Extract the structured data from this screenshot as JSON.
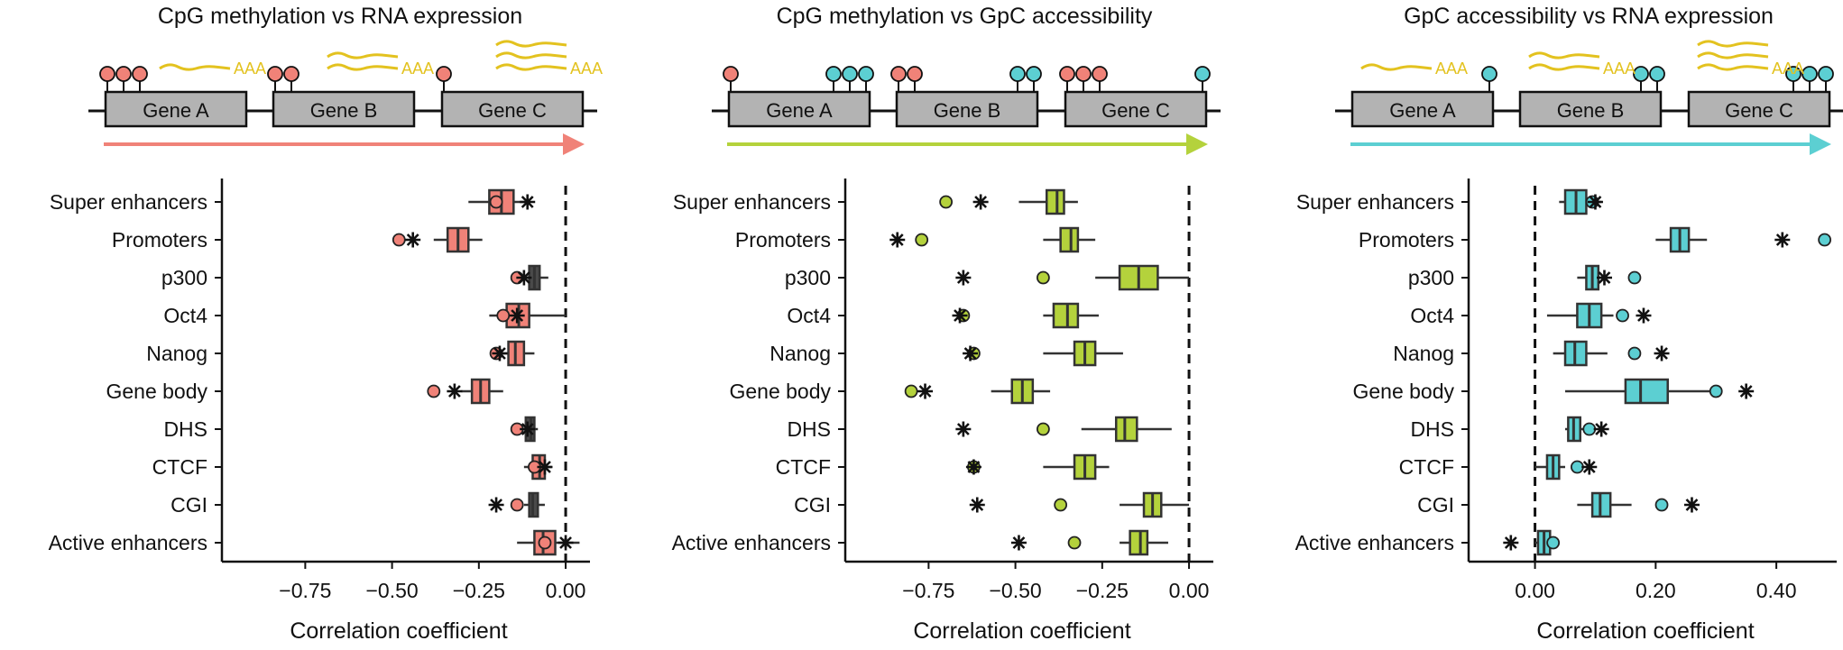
{
  "figure": {
    "panels": [
      {
        "title": "CpG methylation vs RNA expression",
        "accent_color": "#f08278",
        "diagram": {
          "genes": [
            "Gene A",
            "Gene B",
            "Gene C"
          ],
          "pins": [
            {
              "gene": 0,
              "count": 3,
              "color": "#f08278"
            },
            {
              "gene": 1,
              "count": 2,
              "color": "#f08278"
            },
            {
              "gene": 2,
              "count": 1,
              "color": "#f08278"
            }
          ],
          "transcripts": [
            {
              "gene": 0,
              "lines": 1,
              "label": "AAA"
            },
            {
              "gene": 1,
              "lines": 2,
              "label": "AAA"
            },
            {
              "gene": 2,
              "lines": 3,
              "label": "AAA"
            }
          ]
        },
        "chart_data": {
          "type": "box",
          "xlabel": "Correlation coefficient",
          "xlim": [
            -0.99,
            0.07
          ],
          "xticks": [
            -0.75,
            -0.5,
            -0.25,
            0.0
          ],
          "xtick_labels": [
            "−0.75",
            "−0.50",
            "−0.25",
            "0.00"
          ],
          "zero_line": 0.0,
          "categories": [
            "Super enhancers",
            "Promoters",
            "p300",
            "Oct4",
            "Nanog",
            "Gene body",
            "DHS",
            "CTCF",
            "CGI",
            "Active enhancers"
          ],
          "boxes": [
            {
              "category": "Super enhancers",
              "whisker_low": -0.28,
              "q1": -0.22,
              "median": -0.185,
              "q3": -0.15,
              "whisker_high": -0.12,
              "box_color": "#f08278",
              "circle": -0.2,
              "star": -0.11
            },
            {
              "category": "Promoters",
              "whisker_low": -0.38,
              "q1": -0.34,
              "median": -0.31,
              "q3": -0.28,
              "whisker_high": -0.24,
              "box_color": "#f08278",
              "circle": -0.48,
              "star": -0.44
            },
            {
              "category": "p300",
              "whisker_low": -0.13,
              "q1": -0.105,
              "median": -0.09,
              "q3": -0.075,
              "whisker_high": -0.05,
              "box_color": "#f08278",
              "circle": -0.14,
              "star": -0.12
            },
            {
              "category": "Oct4",
              "whisker_low": -0.22,
              "q1": -0.17,
              "median": -0.135,
              "q3": -0.105,
              "whisker_high": 0.0,
              "box_color": "#f08278",
              "circle": -0.18,
              "star": -0.14
            },
            {
              "category": "Nanog",
              "whisker_low": -0.19,
              "q1": -0.165,
              "median": -0.145,
              "q3": -0.12,
              "whisker_high": -0.09,
              "box_color": "#f08278",
              "circle": -0.2,
              "star": -0.19
            },
            {
              "category": "Gene body",
              "whisker_low": -0.3,
              "q1": -0.27,
              "median": -0.245,
              "q3": -0.22,
              "whisker_high": -0.18,
              "box_color": "#f08278",
              "circle": -0.38,
              "star": -0.32
            },
            {
              "category": "DHS",
              "whisker_low": -0.13,
              "q1": -0.115,
              "median": -0.1,
              "q3": -0.09,
              "whisker_high": -0.08,
              "box_color": "#f08278",
              "circle": -0.14,
              "star": -0.11
            },
            {
              "category": "CTCF",
              "whisker_low": -0.12,
              "q1": -0.095,
              "median": -0.075,
              "q3": -0.06,
              "whisker_high": -0.04,
              "box_color": "#f08278",
              "circle": -0.09,
              "star": -0.06
            },
            {
              "category": "CGI",
              "whisker_low": -0.12,
              "q1": -0.105,
              "median": -0.095,
              "q3": -0.08,
              "whisker_high": -0.06,
              "box_color": "#f08278",
              "circle": -0.14,
              "star": -0.2
            },
            {
              "category": "Active enhancers",
              "whisker_low": -0.14,
              "q1": -0.09,
              "median": -0.065,
              "q3": -0.03,
              "whisker_high": 0.04,
              "box_color": "#f08278",
              "circle": -0.06,
              "star": 0.0
            }
          ]
        }
      },
      {
        "title": "CpG methylation vs GpC accessibility",
        "accent_color": "#b4d23c",
        "diagram": {
          "genes": [
            "Gene A",
            "Gene B",
            "Gene C"
          ],
          "pins": [
            {
              "gene": 0,
              "count": 1,
              "color": "#f08278",
              "side": "left"
            },
            {
              "gene": 0,
              "count": 3,
              "color": "#5ccfd2",
              "side": "right"
            },
            {
              "gene": 1,
              "count": 2,
              "color": "#f08278",
              "side": "left"
            },
            {
              "gene": 1,
              "count": 2,
              "color": "#5ccfd2",
              "side": "right"
            },
            {
              "gene": 2,
              "count": 3,
              "color": "#f08278",
              "side": "left"
            },
            {
              "gene": 2,
              "count": 1,
              "color": "#5ccfd2",
              "side": "right"
            }
          ],
          "transcripts": []
        },
        "chart_data": {
          "type": "box",
          "xlabel": "Correlation coefficient",
          "xlim": [
            -0.99,
            0.07
          ],
          "xticks": [
            -0.75,
            -0.5,
            -0.25,
            0.0
          ],
          "xtick_labels": [
            "−0.75",
            "−0.50",
            "−0.25",
            "0.00"
          ],
          "zero_line": 0.0,
          "categories": [
            "Super enhancers",
            "Promoters",
            "p300",
            "Oct4",
            "Nanog",
            "Gene body",
            "DHS",
            "CTCF",
            "CGI",
            "Active enhancers"
          ],
          "boxes": [
            {
              "category": "Super enhancers",
              "whisker_low": -0.49,
              "q1": -0.41,
              "median": -0.38,
              "q3": -0.36,
              "whisker_high": -0.32,
              "box_color": "#b4d23c",
              "circle": -0.7,
              "star": -0.6
            },
            {
              "category": "Promoters",
              "whisker_low": -0.42,
              "q1": -0.37,
              "median": -0.34,
              "q3": -0.32,
              "whisker_high": -0.27,
              "box_color": "#b4d23c",
              "circle": -0.77,
              "star": -0.84
            },
            {
              "category": "p300",
              "whisker_low": -0.27,
              "q1": -0.2,
              "median": -0.145,
              "q3": -0.09,
              "whisker_high": 0.0,
              "box_color": "#b4d23c",
              "circle": -0.42,
              "star": -0.65
            },
            {
              "category": "Oct4",
              "whisker_low": -0.42,
              "q1": -0.39,
              "median": -0.35,
              "q3": -0.32,
              "whisker_high": -0.26,
              "box_color": "#b4d23c",
              "circle": -0.65,
              "star": -0.66
            },
            {
              "category": "Nanog",
              "whisker_low": -0.42,
              "q1": -0.33,
              "median": -0.3,
              "q3": -0.27,
              "whisker_high": -0.19,
              "box_color": "#b4d23c",
              "circle": -0.62,
              "star": -0.63
            },
            {
              "category": "Gene body",
              "whisker_low": -0.57,
              "q1": -0.51,
              "median": -0.48,
              "q3": -0.45,
              "whisker_high": -0.4,
              "box_color": "#b4d23c",
              "circle": -0.8,
              "star": -0.76
            },
            {
              "category": "DHS",
              "whisker_low": -0.31,
              "q1": -0.21,
              "median": -0.185,
              "q3": -0.15,
              "whisker_high": -0.05,
              "box_color": "#b4d23c",
              "circle": -0.42,
              "star": -0.65
            },
            {
              "category": "CTCF",
              "whisker_low": -0.42,
              "q1": -0.33,
              "median": -0.3,
              "q3": -0.27,
              "whisker_high": -0.23,
              "box_color": "#b4d23c",
              "circle": -0.62,
              "star": -0.62
            },
            {
              "category": "CGI",
              "whisker_low": -0.2,
              "q1": -0.13,
              "median": -0.105,
              "q3": -0.08,
              "whisker_high": 0.0,
              "box_color": "#b4d23c",
              "circle": -0.37,
              "star": -0.61
            },
            {
              "category": "Active enhancers",
              "whisker_low": -0.2,
              "q1": -0.17,
              "median": -0.14,
              "q3": -0.12,
              "whisker_high": -0.06,
              "box_color": "#b4d23c",
              "circle": -0.33,
              "star": -0.49
            }
          ]
        }
      },
      {
        "title": "GpC accessibility vs RNA expression",
        "accent_color": "#5ccfd2",
        "diagram": {
          "genes": [
            "Gene A",
            "Gene B",
            "Gene C"
          ],
          "pins": [
            {
              "gene": 0,
              "count": 1,
              "color": "#5ccfd2"
            },
            {
              "gene": 1,
              "count": 2,
              "color": "#5ccfd2"
            },
            {
              "gene": 2,
              "count": 3,
              "color": "#5ccfd2"
            }
          ],
          "transcripts": [
            {
              "gene": 0,
              "lines": 1,
              "label": "AAA"
            },
            {
              "gene": 1,
              "lines": 2,
              "label": "AAA"
            },
            {
              "gene": 2,
              "lines": 3,
              "label": "AAA"
            }
          ]
        },
        "chart_data": {
          "type": "box",
          "xlabel": "Correlation coefficient",
          "xlim": [
            -0.11,
            0.5
          ],
          "xticks": [
            0.0,
            0.2,
            0.4
          ],
          "xtick_labels": [
            "0.00",
            "0.20",
            "0.40"
          ],
          "zero_line": 0.0,
          "categories": [
            "Super enhancers",
            "Promoters",
            "p300",
            "Oct4",
            "Nanog",
            "Gene body",
            "DHS",
            "CTCF",
            "CGI",
            "Active enhancers"
          ],
          "boxes": [
            {
              "category": "Super enhancers",
              "whisker_low": 0.04,
              "q1": 0.05,
              "median": 0.068,
              "q3": 0.085,
              "whisker_high": 0.11,
              "box_color": "#5ccfd2",
              "circle": 0.095,
              "star": 0.1
            },
            {
              "category": "Promoters",
              "whisker_low": 0.2,
              "q1": 0.225,
              "median": 0.24,
              "q3": 0.255,
              "whisker_high": 0.285,
              "box_color": "#5ccfd2",
              "circle": 0.48,
              "star": 0.41
            },
            {
              "category": "p300",
              "whisker_low": 0.07,
              "q1": 0.085,
              "median": 0.095,
              "q3": 0.105,
              "whisker_high": 0.12,
              "box_color": "#5ccfd2",
              "circle": 0.165,
              "star": 0.115
            },
            {
              "category": "Oct4",
              "whisker_low": 0.02,
              "q1": 0.07,
              "median": 0.09,
              "q3": 0.11,
              "whisker_high": 0.13,
              "box_color": "#5ccfd2",
              "circle": 0.145,
              "star": 0.18
            },
            {
              "category": "Nanog",
              "whisker_low": 0.03,
              "q1": 0.05,
              "median": 0.066,
              "q3": 0.085,
              "whisker_high": 0.12,
              "box_color": "#5ccfd2",
              "circle": 0.165,
              "star": 0.21
            },
            {
              "category": "Gene body",
              "whisker_low": 0.05,
              "q1": 0.15,
              "median": 0.175,
              "q3": 0.22,
              "whisker_high": 0.29,
              "box_color": "#5ccfd2",
              "circle": 0.3,
              "star": 0.35
            },
            {
              "category": "DHS",
              "whisker_low": 0.05,
              "q1": 0.055,
              "median": 0.064,
              "q3": 0.075,
              "whisker_high": 0.08,
              "box_color": "#5ccfd2",
              "circle": 0.09,
              "star": 0.11
            },
            {
              "category": "CTCF",
              "whisker_low": 0.0,
              "q1": 0.02,
              "median": 0.03,
              "q3": 0.04,
              "whisker_high": 0.05,
              "box_color": "#5ccfd2",
              "circle": 0.07,
              "star": 0.09
            },
            {
              "category": "CGI",
              "whisker_low": 0.07,
              "q1": 0.095,
              "median": 0.108,
              "q3": 0.125,
              "whisker_high": 0.16,
              "box_color": "#5ccfd2",
              "circle": 0.21,
              "star": 0.26
            },
            {
              "category": "Active enhancers",
              "whisker_low": 0.0,
              "q1": 0.005,
              "median": 0.015,
              "q3": 0.025,
              "whisker_high": 0.03,
              "box_color": "#5ccfd2",
              "circle": 0.03,
              "star": -0.04
            }
          ]
        }
      }
    ]
  }
}
